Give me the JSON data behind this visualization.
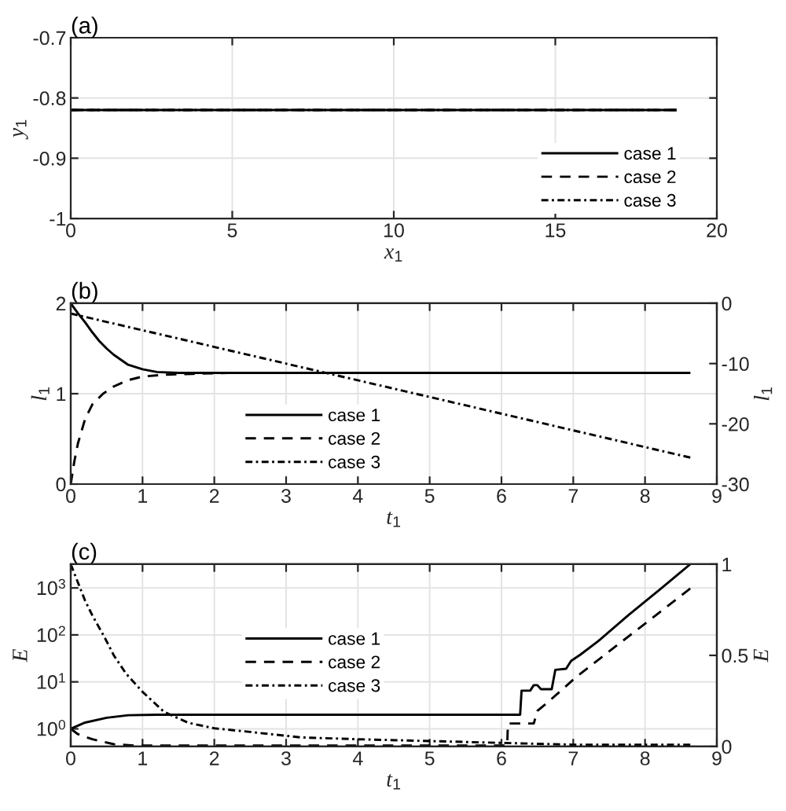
{
  "chart_data": [
    {
      "type": "line",
      "title": "(a)",
      "xlabel": "x$_{1}$",
      "ylabel": "y$_{1}$",
      "xlim": [
        0,
        20
      ],
      "xticks": [
        0,
        5,
        10,
        15,
        20
      ],
      "ylim": [
        -1,
        -0.7
      ],
      "yticks": [
        -1,
        -0.9,
        -0.8,
        -0.7
      ],
      "grid": true,
      "legend": "bottom right",
      "series": [
        {
          "name": "case 1",
          "color": "#000000",
          "line_style": "solid",
          "x": [
            0,
            18.75
          ],
          "values": [
            -0.82,
            -0.82
          ]
        },
        {
          "name": "case 2",
          "color": "#000000",
          "line_style": "dashed",
          "x": [
            0,
            18.75
          ],
          "values": [
            -0.82,
            -0.82
          ]
        },
        {
          "name": "case 3",
          "color": "#000000",
          "line_style": "dashdot",
          "x": [
            0,
            18.75
          ],
          "values": [
            -0.82,
            -0.82
          ]
        }
      ]
    },
    {
      "type": "line",
      "title": "(b)",
      "xlabel": "t$_{1}$",
      "ylabel": "l$_{1}$",
      "y2label": "l$_{1}$",
      "xlim": [
        0,
        9
      ],
      "xticks": [
        0,
        1,
        2,
        3,
        4,
        5,
        6,
        7,
        8,
        9
      ],
      "ylim": [
        0,
        2
      ],
      "yticks": [
        0,
        1,
        2
      ],
      "y2lim": [
        -30,
        0
      ],
      "y2ticks": [
        -30,
        -20,
        -10,
        0
      ],
      "grid": true,
      "legend": "bottom",
      "series": [
        {
          "name": "case 1",
          "color": "#000000",
          "line_style": "solid",
          "x": [
            0,
            0.1,
            0.2,
            0.3,
            0.4,
            0.5,
            0.6,
            0.8,
            1.0,
            1.2,
            1.5,
            2.0,
            8.63
          ],
          "values": [
            2.0,
            1.89,
            1.79,
            1.68,
            1.58,
            1.5,
            1.43,
            1.32,
            1.27,
            1.24,
            1.23,
            1.23,
            1.23
          ]
        },
        {
          "name": "case 2",
          "color": "#000000",
          "line_style": "dashed",
          "x": [
            0,
            0.05,
            0.1,
            0.2,
            0.3,
            0.45,
            0.6,
            0.8,
            1.0,
            1.3,
            1.7,
            2.2,
            8.63
          ],
          "values": [
            0,
            0.25,
            0.45,
            0.72,
            0.88,
            1.0,
            1.08,
            1.15,
            1.19,
            1.21,
            1.22,
            1.23,
            1.23
          ]
        },
        {
          "name": "case 3",
          "color": "#000000",
          "line_style": "dashdot",
          "axis": "y2",
          "x": [
            0,
            8.63
          ],
          "values": [
            -1.7,
            -25.6
          ]
        }
      ]
    },
    {
      "type": "line",
      "title": "(c)",
      "xlabel": "t$_{1}$",
      "ylabel": "E",
      "y2label": "E",
      "log": "y",
      "xlim": [
        0,
        9
      ],
      "xticks": [
        0,
        1,
        2,
        3,
        4,
        5,
        6,
        7,
        8,
        9
      ],
      "ylim": [
        0.42,
        3200
      ],
      "yticks": [
        {
          "value": 1,
          "label": "10$^{0}$"
        },
        {
          "value": 10,
          "label": "10$^{1}$"
        },
        {
          "value": 100,
          "label": "10$^{2}$"
        },
        {
          "value": 1000,
          "label": "10$^{3}$"
        }
      ],
      "y2lim": [
        0,
        1
      ],
      "y2ticks": [
        0,
        0.5,
        1
      ],
      "grid": true,
      "legend": "center",
      "series": [
        {
          "name": "case 1",
          "color": "#000000",
          "line_style": "solid",
          "x": [
            0,
            0.2,
            0.5,
            0.8,
            1.2,
            6.26,
            6.28,
            6.4,
            6.45,
            6.5,
            6.55,
            6.7,
            6.75,
            6.9,
            6.97,
            7.1,
            7.34,
            7.77,
            8.2,
            8.63
          ],
          "values": [
            1.0,
            1.36,
            1.72,
            1.95,
            2.0,
            2.0,
            6.5,
            6.5,
            8.5,
            8.5,
            7,
            7,
            18,
            19,
            28,
            38,
            72,
            265,
            910,
            3200
          ]
        },
        {
          "name": "case 2",
          "color": "#000000",
          "line_style": "dashed",
          "x": [
            0,
            0.1,
            0.3,
            0.6,
            0.9,
            6.08,
            6.09,
            6.45,
            6.5,
            6.68,
            7.05,
            7.77,
            8.63
          ],
          "values": [
            1.0,
            0.77,
            0.6,
            0.47,
            0.44,
            0.44,
            1.3,
            1.3,
            2.4,
            4.1,
            13,
            93,
            970
          ]
        },
        {
          "name": "case 3",
          "color": "#000000",
          "line_style": "dashdot",
          "axis": "y2",
          "x": [
            0,
            0.1,
            0.2,
            0.3,
            0.47,
            0.6,
            0.77,
            1.0,
            1.3,
            1.64,
            2.0,
            2.5,
            3.2,
            4.0,
            5.0,
            6.0,
            7.0,
            8.63
          ],
          "values": [
            1.0,
            0.9,
            0.8,
            0.72,
            0.6,
            0.5,
            0.4,
            0.3,
            0.19,
            0.13,
            0.1,
            0.08,
            0.05,
            0.04,
            0.03,
            0.02,
            0.01,
            0.01
          ]
        }
      ]
    }
  ]
}
